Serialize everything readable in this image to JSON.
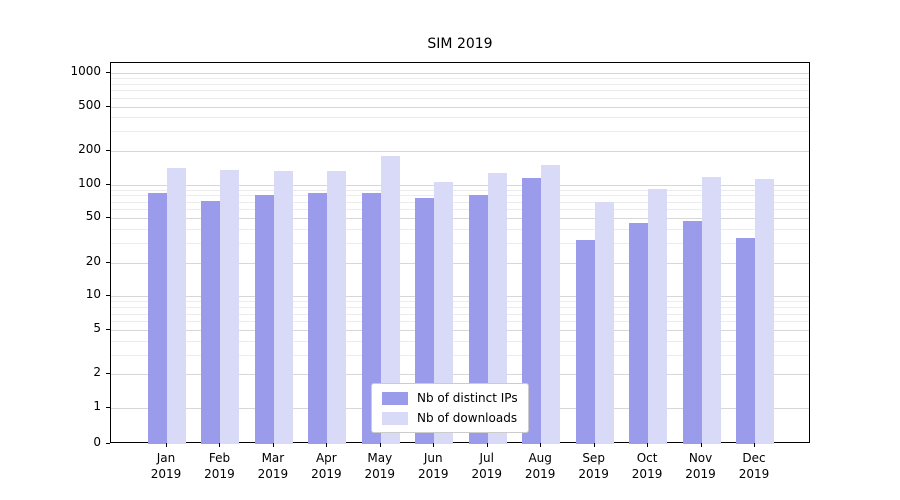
{
  "chart_data": {
    "type": "bar",
    "title": "SIM 2019",
    "categories": [
      "Jan 2019",
      "Feb 2019",
      "Mar 2019",
      "Apr 2019",
      "May 2019",
      "Jun 2019",
      "Jul 2019",
      "Aug 2019",
      "Sep 2019",
      "Oct 2019",
      "Nov 2019",
      "Dec 2019"
    ],
    "series": [
      {
        "name": "Nb of distinct IPs",
        "color": "#9b9bec",
        "values": [
          85,
          72,
          80,
          84,
          85,
          76,
          80,
          115,
          32,
          45,
          47,
          33
        ]
      },
      {
        "name": "Nb of downloads",
        "color": "#d9d9f8",
        "values": [
          140,
          135,
          132,
          132,
          180,
          105,
          128,
          150,
          70,
          92,
          118,
          112
        ]
      }
    ],
    "yscale": "symlog",
    "yticks": [
      0,
      1,
      2,
      5,
      10,
      20,
      50,
      100,
      200,
      500,
      1000
    ],
    "grid": true,
    "legend_position": "lower-center",
    "xlabel": "",
    "ylabel": ""
  },
  "colors": {
    "grid_major": "#d7d7d7",
    "grid_minor": "#ececec",
    "axis": "#000000",
    "background": "#ffffff"
  }
}
